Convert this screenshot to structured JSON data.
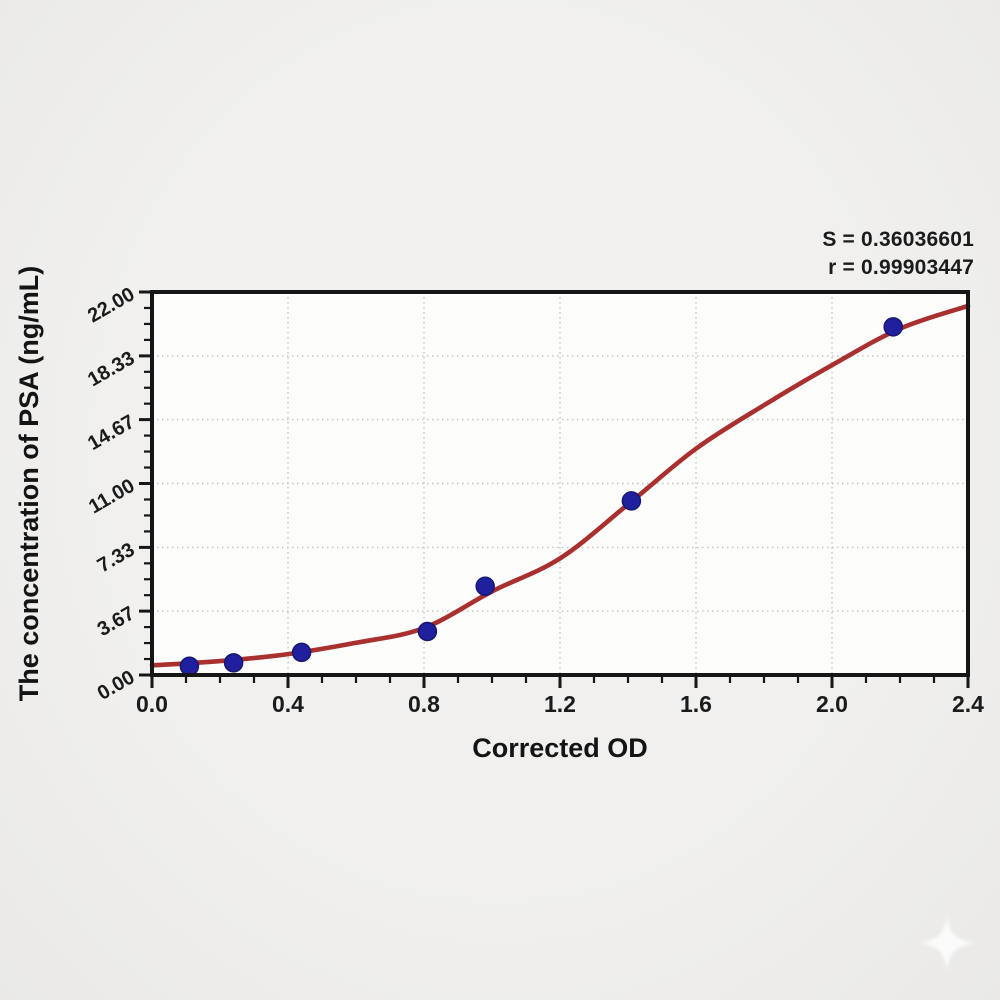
{
  "figure": {
    "kind": "elisa-standard-curve"
  },
  "chart_data": {
    "type": "scatter",
    "title": "",
    "xlabel": "Corrected OD",
    "ylabel": "The concentration of PSA (ng/mL)",
    "xlim": [
      0.0,
      2.4
    ],
    "ylim": [
      0.0,
      22.0
    ],
    "grid": true,
    "legend": "none",
    "x_major_ticks": [
      0.0,
      0.4,
      0.8,
      1.2,
      1.6,
      2.0,
      2.4
    ],
    "x_tick_labels": [
      "0.0",
      "0.4",
      "0.8",
      "1.2",
      "1.6",
      "2.0",
      "2.4"
    ],
    "x_minor_step": 0.1,
    "y_major_ticks": [
      0.0,
      3.67,
      7.33,
      11.0,
      14.67,
      18.33,
      22.0
    ],
    "y_tick_labels": [
      "0.00",
      "3.67",
      "7.33",
      "11.00",
      "14.67",
      "18.33",
      "22.00"
    ],
    "y_minor_divisions": 4,
    "annotation": {
      "s_line": "S = 0.36036601",
      "r_line": "r = 0.99903447"
    },
    "series": [
      {
        "name": "standard-points",
        "type": "scatter",
        "color": "#20209e",
        "edge_color": "#17176f",
        "points": [
          [
            0.11,
            0.5
          ],
          [
            0.24,
            0.7
          ],
          [
            0.44,
            1.3
          ],
          [
            0.81,
            2.5
          ],
          [
            0.98,
            5.1
          ],
          [
            1.41,
            10.0
          ],
          [
            2.18,
            20.0
          ]
        ]
      },
      {
        "name": "fitted-curve",
        "type": "line",
        "color": "#a8302f",
        "points": [
          [
            0.0,
            0.55
          ],
          [
            0.2,
            0.8
          ],
          [
            0.4,
            1.2
          ],
          [
            0.6,
            1.85
          ],
          [
            0.8,
            2.7
          ],
          [
            1.0,
            4.8
          ],
          [
            1.2,
            6.7
          ],
          [
            1.4,
            9.8
          ],
          [
            1.6,
            13.0
          ],
          [
            1.8,
            15.5
          ],
          [
            2.0,
            17.8
          ],
          [
            2.2,
            19.9
          ],
          [
            2.4,
            21.2
          ]
        ]
      }
    ],
    "colors": {
      "plot_bg": "#fdfdfc",
      "axis": "#161616",
      "grid": "#c3c3c0",
      "text": "#1b1b1b",
      "page_bg": "#efeeec"
    }
  }
}
